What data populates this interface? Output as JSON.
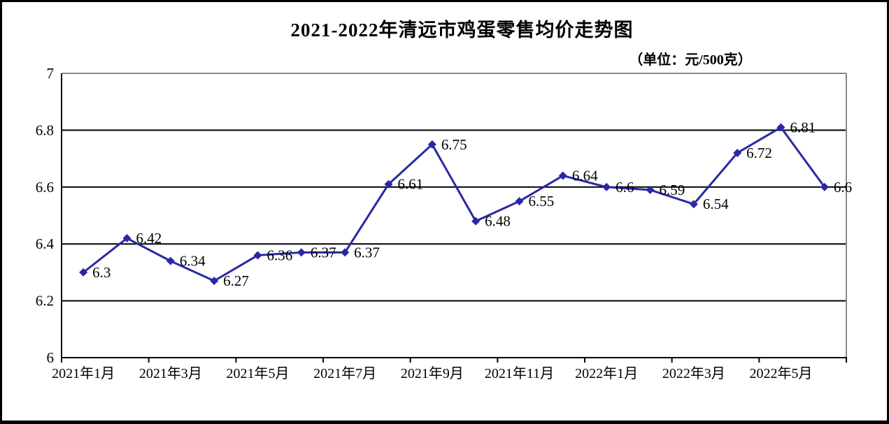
{
  "chart_data": {
    "type": "line",
    "title": "2021-2022年清远市鸡蛋零售均价走势图",
    "unit_label": "（单位：元/500克）",
    "series": [
      {
        "name": "鸡蛋零售均价",
        "values": [
          6.3,
          6.42,
          6.34,
          6.27,
          6.36,
          6.37,
          6.37,
          6.61,
          6.75,
          6.48,
          6.55,
          6.64,
          6.6,
          6.59,
          6.54,
          6.72,
          6.81,
          6.6
        ],
        "data_labels": [
          "6.3",
          "6.42",
          "6.34",
          "6.27",
          "6.36",
          "6.37",
          "6.37",
          "6.61",
          "6.75",
          "6.48",
          "6.55",
          "6.64",
          "6.6",
          "6.59",
          "6.54",
          "6.72",
          "6.81",
          "6.6"
        ]
      }
    ],
    "x_axis": {
      "tick_labels": [
        "2021年1月",
        "2021年3月",
        "2021年5月",
        "2021年7月",
        "2021年9月",
        "2021年11月",
        "2022年1月",
        "2022年3月",
        "2022年5月"
      ],
      "label_every": 2,
      "point_count": 18
    },
    "y_axis": {
      "min": 6,
      "max": 7,
      "tick_interval": 0.2,
      "tick_values": [
        7,
        6.8,
        6.6,
        6.4,
        6.2,
        6
      ],
      "tick_labels": [
        "7",
        "6.8",
        "6.6",
        "6.4",
        "6.2",
        "6"
      ]
    },
    "grid": true,
    "legend_position": "none",
    "marker": "diamond",
    "colors": {
      "line": "#2929A3",
      "marker": "#2929A3",
      "gridline": "#000000",
      "axis": "#000000",
      "plot_frame": "#898989",
      "text": "#000000",
      "background": "#FFFFFF",
      "outer_border": "#000000"
    }
  }
}
